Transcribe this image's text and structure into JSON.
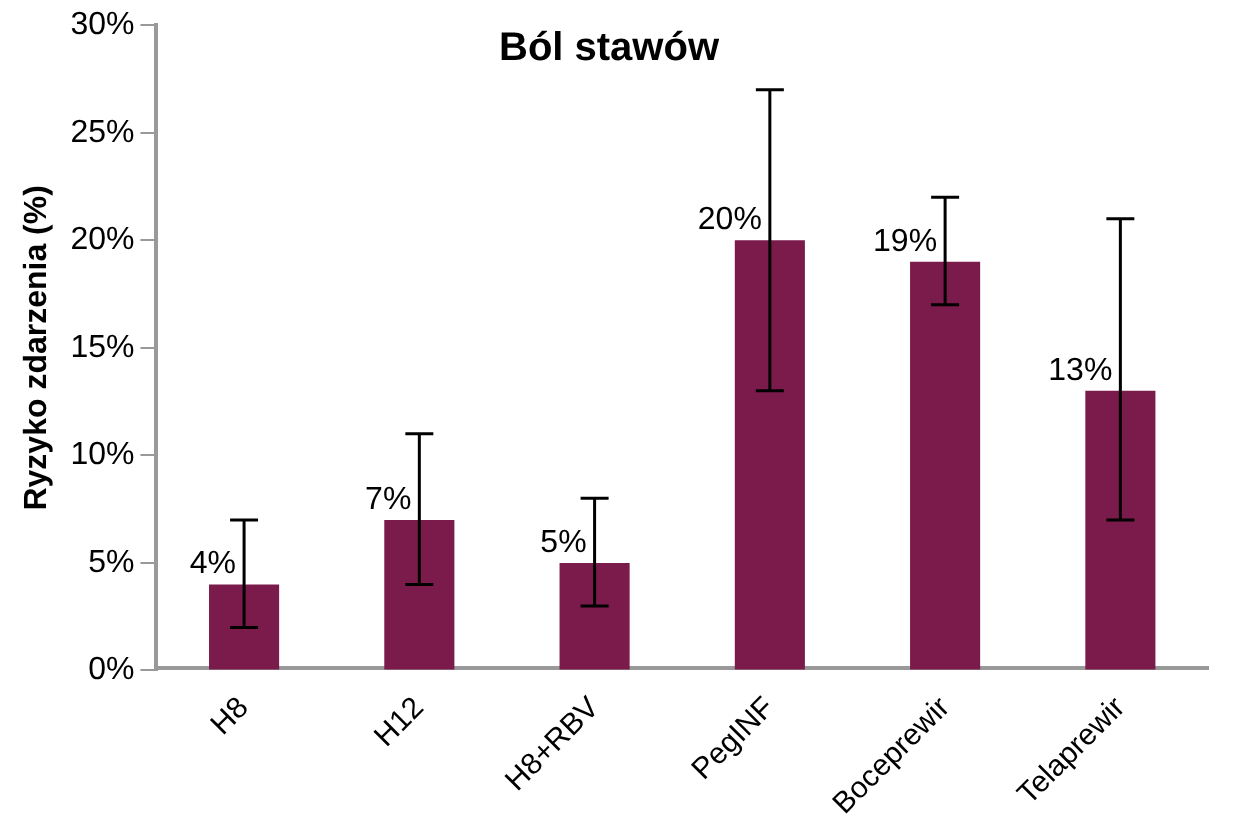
{
  "chart_data": {
    "type": "bar",
    "title": "Ból stawów",
    "ylabel": "Ryzyko zdarzenia (%)",
    "categories": [
      "H8",
      "H12",
      "H8+RBV",
      "PegINF",
      "Boceprewir",
      "Telaprewir"
    ],
    "values": [
      4,
      7,
      5,
      20,
      19,
      13
    ],
    "errors": [
      [
        2,
        7
      ],
      [
        4,
        11
      ],
      [
        3,
        8
      ],
      [
        13,
        27
      ],
      [
        17,
        22
      ],
      [
        7,
        21
      ]
    ],
    "value_labels": [
      "4%",
      "7%",
      "5%",
      "20%",
      "19%",
      "13%"
    ],
    "color": "#7a1b4b",
    "ylim": [
      0,
      30
    ],
    "yticks": [
      {
        "value": 0,
        "label": "0%"
      },
      {
        "value": 5,
        "label": "5%"
      },
      {
        "value": 10,
        "label": "10%"
      },
      {
        "value": 15,
        "label": "15%"
      },
      {
        "value": 20,
        "label": "20%"
      },
      {
        "value": 25,
        "label": "25%"
      },
      {
        "value": 30,
        "label": "30%"
      }
    ],
    "grid": false,
    "legend": false
  }
}
